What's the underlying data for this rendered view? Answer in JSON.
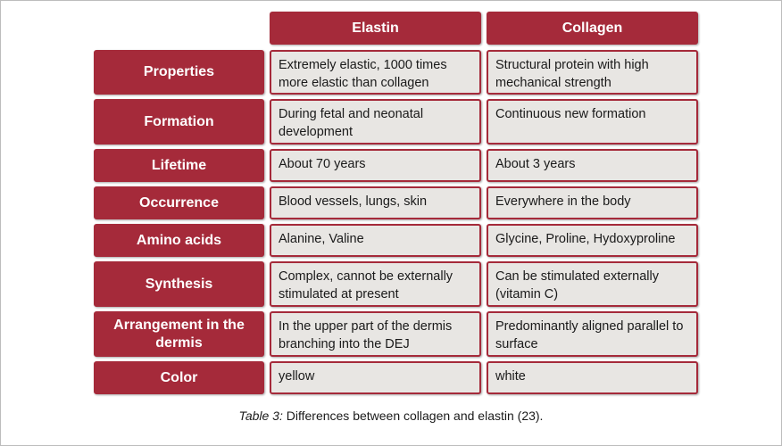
{
  "columns": {
    "elastin": "Elastin",
    "collagen": "Collagen"
  },
  "rows": [
    {
      "label": "Properties",
      "elastin": "Extremely elastic, 1000 times more elastic than collagen",
      "collagen": "Structural protein with high mechanical strength"
    },
    {
      "label": "Formation",
      "elastin": "During fetal and neonatal development",
      "collagen": "Continuous new formation"
    },
    {
      "label": "Lifetime",
      "elastin": "About 70 years",
      "collagen": "About 3 years"
    },
    {
      "label": "Occurrence",
      "elastin": "Blood vessels, lungs, skin",
      "collagen": "Everywhere in the body"
    },
    {
      "label": "Amino acids",
      "elastin": "Alanine, Valine",
      "collagen": "Glycine, Proline, Hydoxyproline"
    },
    {
      "label": "Synthesis",
      "elastin": "Complex, cannot be externally stimulated at present",
      "collagen": "Can be stimulated externally (vitamin C)"
    },
    {
      "label": "Arrangement in the dermis",
      "elastin": "In the upper part of the dermis branching into the DEJ",
      "collagen": "Predominantly aligned parallel to surface"
    },
    {
      "label": "Color",
      "elastin": "yellow",
      "collagen": "white"
    }
  ],
  "caption": {
    "prefix": "Table 3:",
    "text": " Differences between collagen and elastin (23)."
  },
  "colors": {
    "accent": "#a52a3a",
    "cell_bg": "#e8e6e3"
  }
}
